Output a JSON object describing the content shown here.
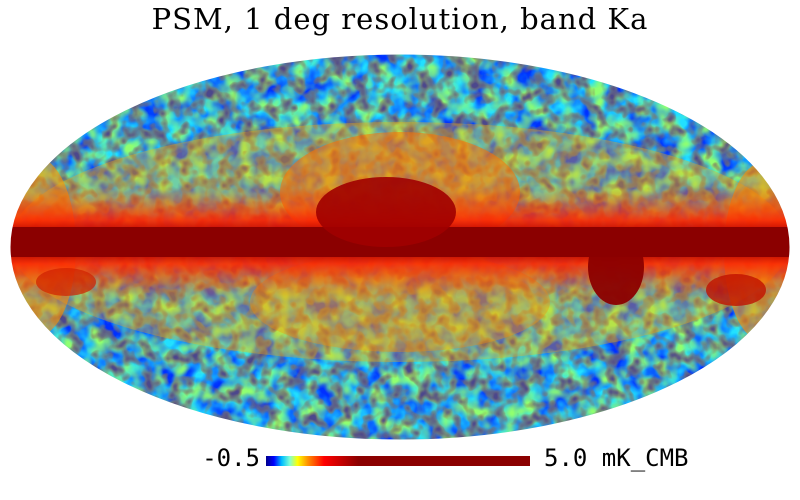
{
  "title": "PSM, 1 deg resolution, band Ka",
  "colorbar": {
    "min_label": "-0.5",
    "max_label": "5.0 mK_CMB",
    "min_value": -0.5,
    "max_value": 5.0,
    "colors": [
      "#00008b",
      "#0000ff",
      "#00bfff",
      "#7fffd4",
      "#ffff00",
      "#ff8c00",
      "#ff0000",
      "#8b0000"
    ]
  },
  "map": {
    "projection": "Mollweide",
    "galactic_plane": "horizontal band of high values across the center"
  }
}
